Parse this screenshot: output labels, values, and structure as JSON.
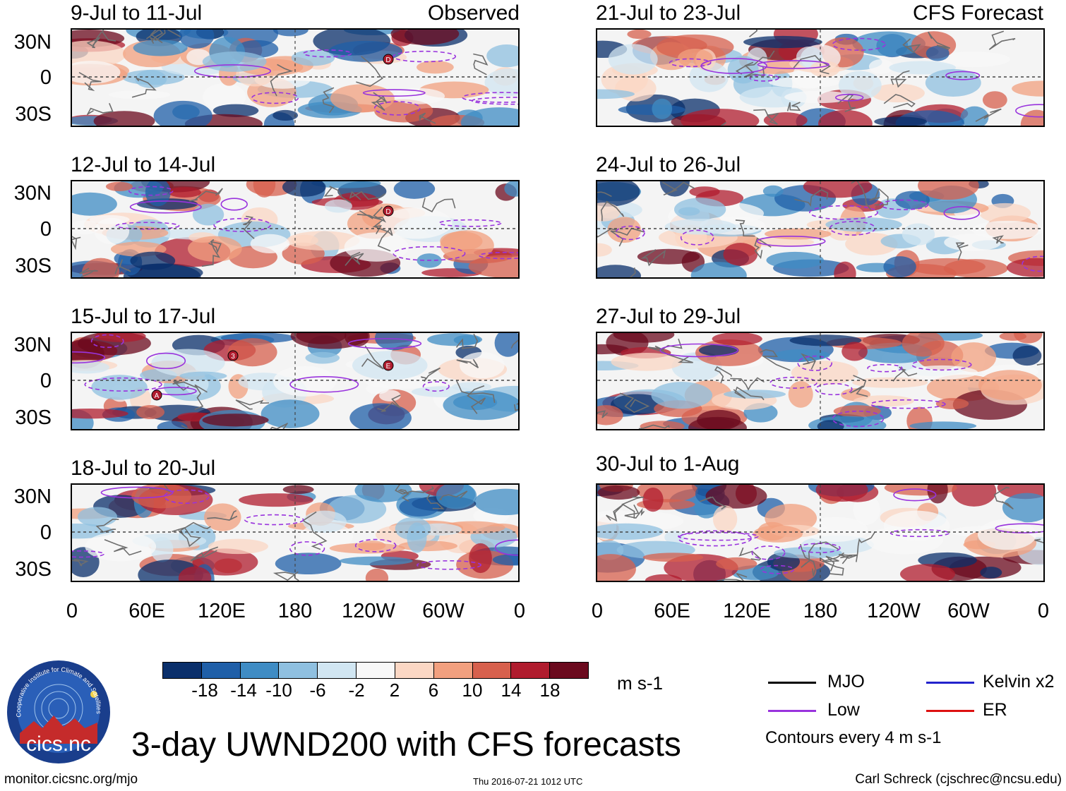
{
  "panels": {
    "observed_header": "Observed",
    "forecast_header": "CFS Forecast",
    "left": [
      {
        "title": "9-Jul to 11-Jul"
      },
      {
        "title": "12-Jul to 14-Jul"
      },
      {
        "title": "15-Jul to 17-Jul"
      },
      {
        "title": "18-Jul to 20-Jul"
      }
    ],
    "right": [
      {
        "title": "21-Jul to 23-Jul"
      },
      {
        "title": "24-Jul to 26-Jul"
      },
      {
        "title": "27-Jul to 29-Jul"
      },
      {
        "title": "30-Jul to 1-Aug"
      }
    ]
  },
  "axes": {
    "lat_labels": [
      "30N",
      "0",
      "30S"
    ],
    "lon_labels": [
      "0",
      "60E",
      "120E",
      "180",
      "120W",
      "60W",
      "0"
    ]
  },
  "storm_markers": {
    "panel1": [
      "D"
    ],
    "panel2": [
      "D"
    ],
    "panel3": [
      "3",
      "E",
      "A"
    ]
  },
  "colorbar": {
    "ticks": [
      "-18",
      "-14",
      "-10",
      "-6",
      "-2",
      "2",
      "6",
      "10",
      "14",
      "18"
    ],
    "units": "m s-1",
    "colors": [
      "#0a2f6b",
      "#1f5fa8",
      "#3f8cc4",
      "#8fc0e0",
      "#d1e6f2",
      "#f8f8f8",
      "#fbd7c4",
      "#f2a07f",
      "#d7604d",
      "#b01c2e",
      "#6b0a1e"
    ]
  },
  "legend": {
    "items": [
      {
        "label": "MJO",
        "color": "#000000"
      },
      {
        "label": "Kelvin x2",
        "color": "#2222cc"
      },
      {
        "label": "Low",
        "color": "#9933dd"
      },
      {
        "label": "ER",
        "color": "#dd1111"
      }
    ],
    "contour_note": "Contours every 4 m s-1"
  },
  "logo": {
    "ring_text": "Cooperative Institute for Climate and Satellites",
    "name": "cics.nc"
  },
  "footer": {
    "title": "3-day UWND200 with CFS forecasts",
    "url": "monitor.cicsnc.org/mjo",
    "timestamp": "Thu 2016-07-21 1012 UTC",
    "author": "Carl Schreck (cjschrec@ncsu.edu)"
  }
}
